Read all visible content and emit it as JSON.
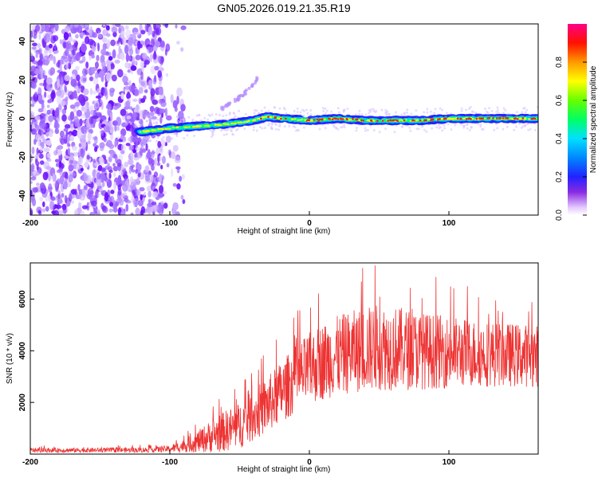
{
  "title": "GN05.2026.019.21.35.R19",
  "chart_data": [
    {
      "type": "heatmap",
      "xlabel": "Height of straight line (km)",
      "ylabel": "Frequency (Hz)",
      "xlim": [
        -200,
        164
      ],
      "ylim": [
        -50,
        49
      ],
      "xticks": [
        -200,
        -100,
        0,
        100
      ],
      "yticks": [
        -40,
        -20,
        0,
        20,
        40
      ],
      "colorbar": {
        "label": "Normalized spectral amplitude",
        "range": [
          0,
          1
        ],
        "ticks": [
          0.0,
          0.2,
          0.4,
          0.6,
          0.8
        ]
      },
      "signal_track": {
        "description_free_points_x": [
          -122,
          -110,
          -100,
          -80,
          -60,
          -40,
          -30,
          -20,
          0,
          20,
          40,
          60,
          80,
          100,
          120,
          140,
          164
        ],
        "frequency": [
          -7,
          -6,
          -5,
          -4,
          -3,
          -1,
          1,
          0,
          -1,
          0,
          -1,
          -1,
          -1,
          0,
          0,
          0,
          0
        ]
      },
      "secondary_track": {
        "x": [
          -65,
          -55,
          -45,
          -37
        ],
        "frequency": [
          4,
          8,
          14,
          21
        ]
      },
      "noise_region_x": [
        -200,
        -90
      ]
    },
    {
      "type": "line",
      "xlabel": "Height of straight line (km)",
      "ylabel": "SNR (10 * v/v)",
      "xlim": [
        -200,
        164
      ],
      "ylim": [
        0,
        7400
      ],
      "xticks": [
        -200,
        -100,
        0,
        100
      ],
      "yticks": [
        2000,
        4000,
        6000
      ],
      "color": "#ee3333",
      "envelope": {
        "x": [
          -200,
          -150,
          -120,
          -100,
          -90,
          -80,
          -70,
          -60,
          -50,
          -40,
          -30,
          -20,
          -10,
          0,
          10,
          20,
          30,
          40,
          50,
          60,
          80,
          100,
          120,
          140,
          164
        ],
        "mean": [
          150,
          150,
          160,
          200,
          320,
          480,
          700,
          900,
          1100,
          1500,
          1900,
          2400,
          2900,
          3300,
          3600,
          3800,
          3950,
          4050,
          4150,
          4100,
          4000,
          3950,
          3900,
          3850,
          3800
        ],
        "spread": [
          90,
          90,
          100,
          130,
          250,
          420,
          650,
          800,
          900,
          1000,
          1100,
          1200,
          1300,
          1400,
          1500,
          1550,
          1600,
          1650,
          1700,
          1650,
          1500,
          1400,
          1300,
          1250,
          1200
        ]
      },
      "peak": {
        "x": 47,
        "y": 7300
      }
    }
  ]
}
